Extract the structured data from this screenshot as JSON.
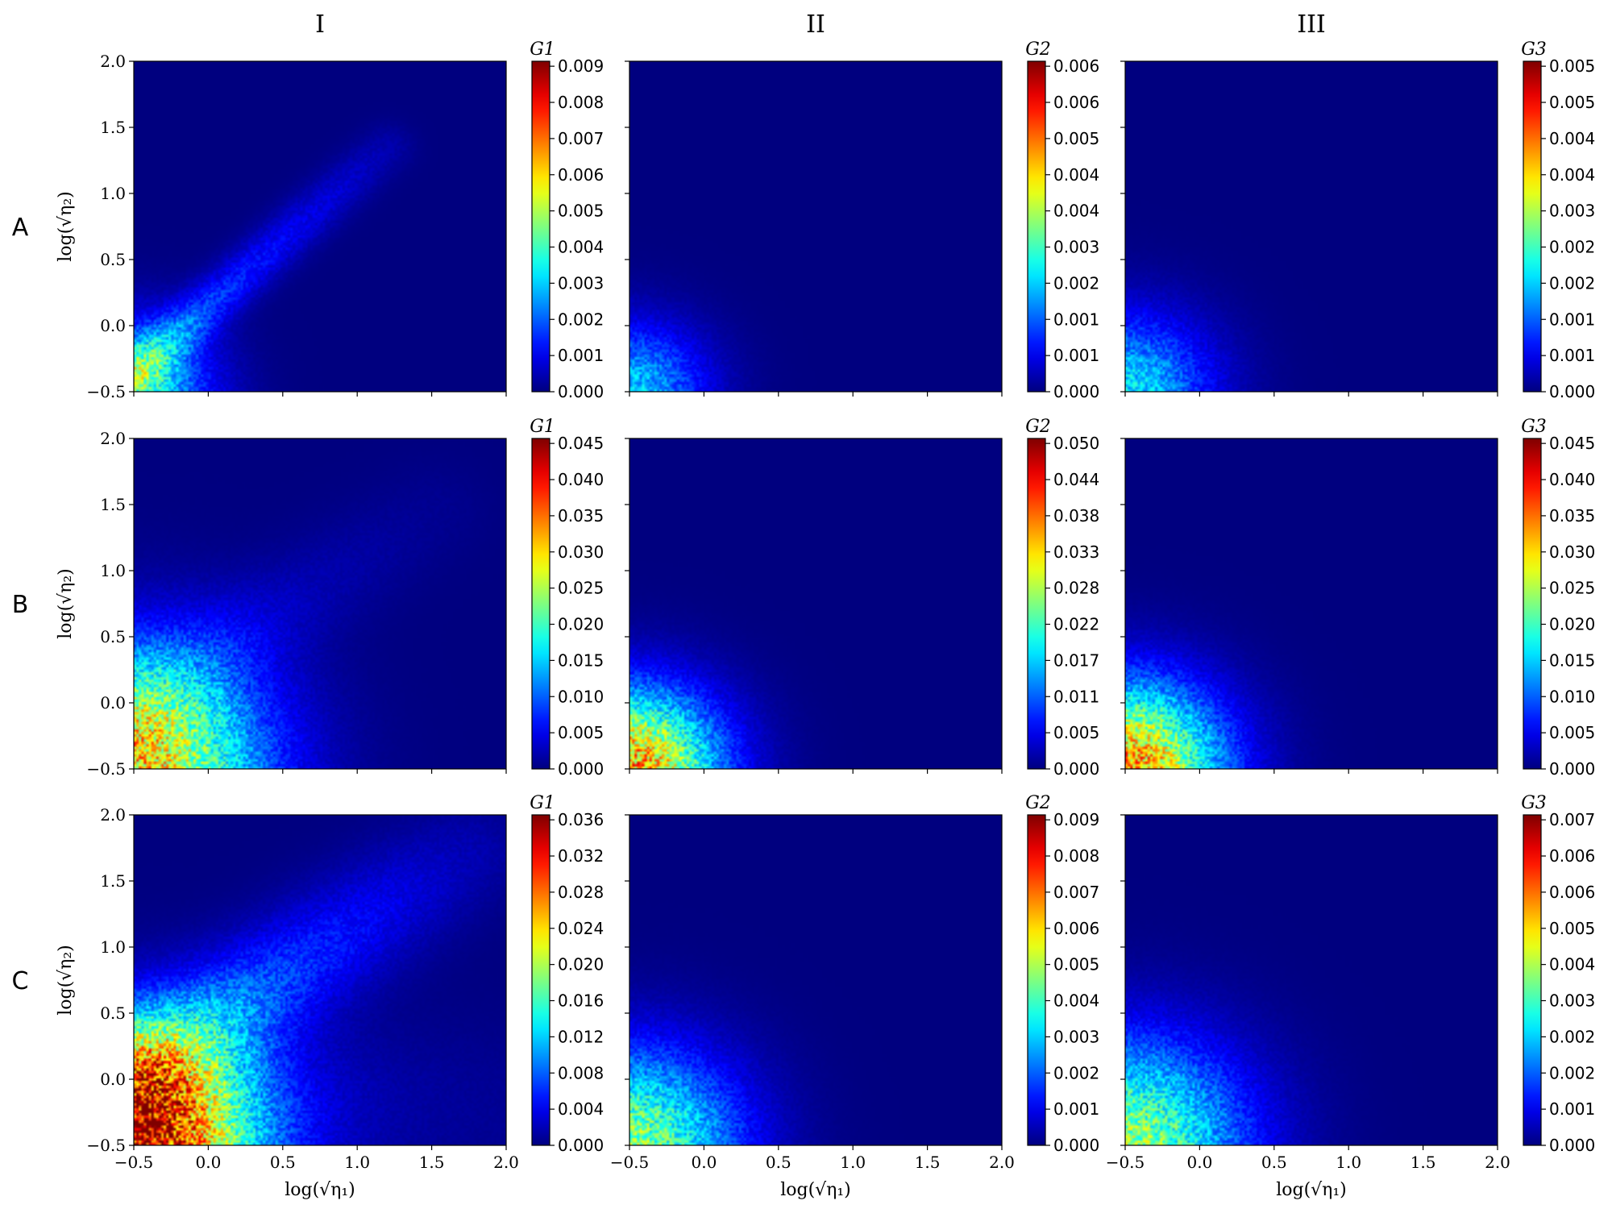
{
  "columns": [
    "I",
    "II",
    "III"
  ],
  "rows": [
    "A",
    "B",
    "C"
  ],
  "xlabel": "log(√η₁)",
  "ylabel": "log(√η₂)",
  "x_ticks": [
    "−0.5",
    "0.0",
    "0.5",
    "1.0",
    "1.5",
    "2.0"
  ],
  "y_ticks": [
    "−0.5",
    "0.0",
    "0.5",
    "1.0",
    "1.5",
    "2.0"
  ],
  "colormap": [
    "#00007f",
    "#0000ff",
    "#007fff",
    "#00ffff",
    "#7fff7f",
    "#ffff00",
    "#ff7f00",
    "#ff0000",
    "#7f0000"
  ],
  "chart_data": [
    {
      "type": "heatmap",
      "panel": "A-I",
      "xlabel": "",
      "ylabel": "log(√η₂)",
      "xlim": [
        -0.5,
        2.0
      ],
      "ylim": [
        -0.5,
        2.0
      ],
      "colorbar": {
        "label": "G1",
        "min": 0,
        "max": 0.009,
        "ticks": [
          "0.000",
          "0.001",
          "0.002",
          "0.003",
          "0.004",
          "0.005",
          "0.006",
          "0.007",
          "0.008",
          "0.009"
        ]
      },
      "features": [
        {
          "shape": "corner",
          "x": -0.5,
          "y": -0.5,
          "value": 0.0035,
          "spread": 0.35
        },
        {
          "shape": "ridge",
          "x0": -0.5,
          "y0": -0.35,
          "x1": 1.2,
          "y1": 1.35,
          "value": 0.002,
          "width": 0.12
        }
      ]
    },
    {
      "type": "heatmap",
      "panel": "A-II",
      "xlabel": "",
      "ylabel": "",
      "xlim": [
        -0.5,
        2.0
      ],
      "ylim": [
        -0.5,
        2.0
      ],
      "colorbar": {
        "label": "G2",
        "min": 0,
        "max": 0.0068,
        "ticks": [
          "0.000",
          "0.001",
          "0.001",
          "0.002",
          "0.003",
          "0.004",
          "0.004",
          "0.005",
          "0.006",
          "0.006"
        ]
      },
      "features": [
        {
          "shape": "corner",
          "x": -0.5,
          "y": -0.5,
          "value": 0.0022,
          "spread": 0.35
        }
      ]
    },
    {
      "type": "heatmap",
      "panel": "A-III",
      "xlabel": "",
      "ylabel": "",
      "xlim": [
        -0.5,
        2.0
      ],
      "ylim": [
        -0.5,
        2.0
      ],
      "colorbar": {
        "label": "G3",
        "min": 0,
        "max": 0.0052,
        "ticks": [
          "0.000",
          "0.001",
          "0.001",
          "0.002",
          "0.002",
          "0.003",
          "0.004",
          "0.004",
          "0.005",
          "0.005"
        ]
      },
      "features": [
        {
          "shape": "corner",
          "x": -0.5,
          "y": -0.5,
          "value": 0.0018,
          "spread": 0.4
        }
      ]
    },
    {
      "type": "heatmap",
      "panel": "B-I",
      "xlabel": "",
      "ylabel": "log(√η₂)",
      "xlim": [
        -0.5,
        2.0
      ],
      "ylim": [
        -0.5,
        2.0
      ],
      "colorbar": {
        "label": "G1",
        "min": 0,
        "max": 0.046,
        "ticks": [
          "0.000",
          "0.005",
          "0.010",
          "0.015",
          "0.020",
          "0.025",
          "0.030",
          "0.035",
          "0.040",
          "0.045"
        ]
      },
      "features": [
        {
          "shape": "corner",
          "x": -0.5,
          "y": -0.5,
          "value": 0.03,
          "spread": 0.6
        },
        {
          "shape": "ridge",
          "x0": -0.5,
          "y0": 0.0,
          "x1": 1.5,
          "y1": 1.45,
          "value": 0.004,
          "width": 0.25
        }
      ]
    },
    {
      "type": "heatmap",
      "panel": "B-II",
      "xlabel": "",
      "ylabel": "",
      "xlim": [
        -0.5,
        2.0
      ],
      "ylim": [
        -0.5,
        2.0
      ],
      "colorbar": {
        "label": "G2",
        "min": 0,
        "max": 0.0505,
        "ticks": [
          "0.000",
          "0.005",
          "0.011",
          "0.017",
          "0.022",
          "0.028",
          "0.033",
          "0.038",
          "0.044",
          "0.050"
        ]
      },
      "features": [
        {
          "shape": "corner",
          "x": -0.5,
          "y": -0.5,
          "value": 0.036,
          "spread": 0.42
        }
      ]
    },
    {
      "type": "heatmap",
      "panel": "B-III",
      "xlabel": "",
      "ylabel": "",
      "xlim": [
        -0.5,
        2.0
      ],
      "ylim": [
        -0.5,
        2.0
      ],
      "colorbar": {
        "label": "G3",
        "min": 0,
        "max": 0.047,
        "ticks": [
          "0.000",
          "0.005",
          "0.010",
          "0.015",
          "0.020",
          "0.025",
          "0.030",
          "0.035",
          "0.040",
          "0.045"
        ]
      },
      "features": [
        {
          "shape": "corner",
          "x": -0.5,
          "y": -0.5,
          "value": 0.034,
          "spread": 0.45
        }
      ]
    },
    {
      "type": "heatmap",
      "panel": "C-I",
      "xlabel": "log(√η₁)",
      "ylabel": "log(√η₂)",
      "xlim": [
        -0.5,
        2.0
      ],
      "ylim": [
        -0.5,
        2.0
      ],
      "colorbar": {
        "label": "G1",
        "min": 0,
        "max": 0.0385,
        "ticks": [
          "0.000",
          "0.004",
          "0.008",
          "0.012",
          "0.016",
          "0.020",
          "0.024",
          "0.028",
          "0.032",
          "0.036"
        ]
      },
      "features": [
        {
          "shape": "corner",
          "x": -0.5,
          "y": -0.5,
          "value": 0.032,
          "spread": 0.55
        },
        {
          "shape": "ridge",
          "x0": -0.3,
          "y0": 0.2,
          "x1": 1.7,
          "y1": 1.7,
          "value": 0.01,
          "width": 0.28
        },
        {
          "shape": "band",
          "y": -0.2,
          "value": 0.006,
          "width": 0.45
        }
      ]
    },
    {
      "type": "heatmap",
      "panel": "C-II",
      "xlabel": "log(√η₁)",
      "ylabel": "",
      "xlim": [
        -0.5,
        2.0
      ],
      "ylim": [
        -0.5,
        2.0
      ],
      "colorbar": {
        "label": "G2",
        "min": 0,
        "max": 0.0099,
        "ticks": [
          "0.000",
          "0.001",
          "0.002",
          "0.003",
          "0.004",
          "0.005",
          "0.006",
          "0.007",
          "0.008",
          "0.009"
        ]
      },
      "features": [
        {
          "shape": "corner",
          "x": -0.5,
          "y": -0.5,
          "value": 0.005,
          "spread": 0.5
        }
      ]
    },
    {
      "type": "heatmap",
      "panel": "C-III",
      "xlabel": "log(√η₁)",
      "ylabel": "",
      "xlim": [
        -0.5,
        2.0
      ],
      "ylim": [
        -0.5,
        2.0
      ],
      "colorbar": {
        "label": "G3",
        "min": 0,
        "max": 0.0077,
        "ticks": [
          "0.000",
          "0.001",
          "0.002",
          "0.002",
          "0.003",
          "0.004",
          "0.005",
          "0.006",
          "0.006",
          "0.007"
        ]
      },
      "features": [
        {
          "shape": "corner",
          "x": -0.5,
          "y": -0.5,
          "value": 0.004,
          "spread": 0.55
        }
      ]
    }
  ]
}
